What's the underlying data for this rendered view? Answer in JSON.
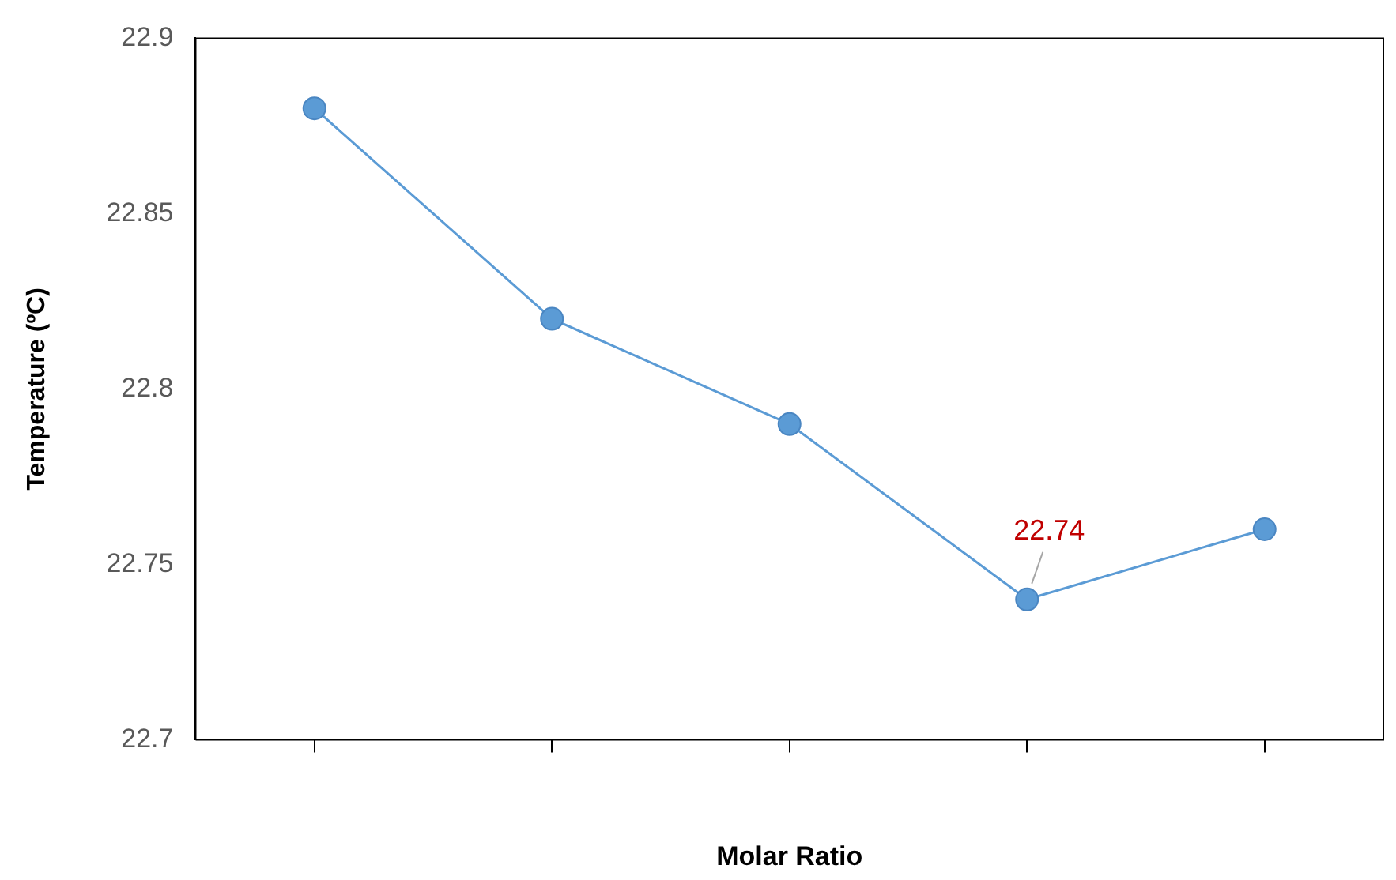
{
  "chart_data": {
    "type": "line",
    "xlabel": "Molar Ratio",
    "ylabel": "Temperature (ºC)",
    "categories": [
      null,
      null,
      null,
      null,
      null
    ],
    "series": [
      {
        "color": "#5b9bd5",
        "values": [
          22.88,
          22.82,
          22.79,
          22.74,
          22.76
        ],
        "value_labels": [
          null,
          null,
          null,
          "22.74",
          null
        ]
      }
    ],
    "ylim": [
      22.7,
      22.9
    ],
    "yticks": [
      22.7,
      22.75,
      22.8,
      22.85,
      22.9
    ],
    "grid": false,
    "legend": false,
    "marker": "circle",
    "line_style": "solid",
    "tick_labels": "y"
  }
}
